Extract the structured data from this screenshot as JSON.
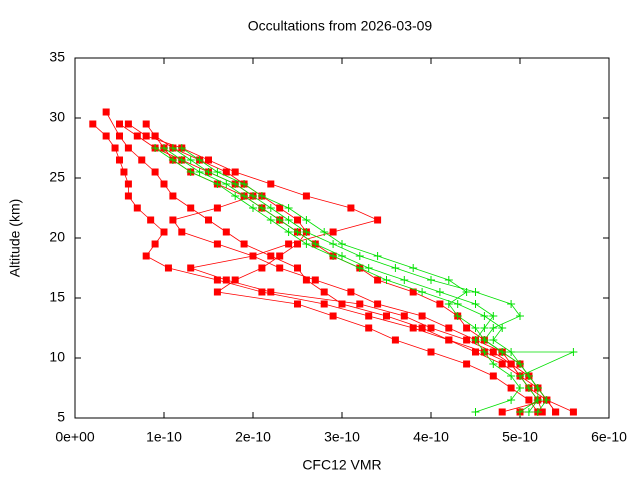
{
  "chart_data": {
    "type": "scatter",
    "title": "Occultations from 2026-03-09",
    "x_label": "CFC12 VMR",
    "y_label": "Altitude (km)",
    "xlim": [
      0,
      6e-10
    ],
    "ylim": [
      5,
      35
    ],
    "xticks": [
      {
        "value": 0,
        "label": "0e+00"
      },
      {
        "value": 1e-10,
        "label": "1e-10"
      },
      {
        "value": 2e-10,
        "label": "2e-10"
      },
      {
        "value": 3e-10,
        "label": "3e-10"
      },
      {
        "value": 4e-10,
        "label": "4e-10"
      },
      {
        "value": 5e-10,
        "label": "5e-10"
      },
      {
        "value": 6e-10,
        "label": "6e-10"
      }
    ],
    "yticks": [
      5,
      10,
      15,
      20,
      25,
      30,
      35
    ],
    "series": [
      {
        "color": "#ff0000",
        "marker": "square",
        "x": [
          2e-11,
          3.5e-11,
          4.5e-11,
          5e-11,
          5.5e-11,
          6e-11,
          6e-11,
          7e-11,
          8.5e-11,
          1e-10,
          9e-11,
          8e-11,
          1.05e-10,
          1.6e-10,
          2.1e-10,
          2.8e-10,
          3.3e-10,
          3.8e-10,
          4.2e-10,
          4.5e-10,
          4.8e-10,
          5e-10,
          5.1e-10,
          5.2e-10,
          5.25e-10
        ],
        "values": [
          29.5,
          28.5,
          27.5,
          26.5,
          25.5,
          24.5,
          23.5,
          22.5,
          21.5,
          20.5,
          19.5,
          18.5,
          17.5,
          16.5,
          15.5,
          14.5,
          13.5,
          12.5,
          11.5,
          10.5,
          9.5,
          8.5,
          7.5,
          6.5,
          5.5
        ]
      },
      {
        "color": "#ff0000",
        "marker": "square",
        "x": [
          3.5e-11,
          5e-11,
          6e-11,
          7.5e-11,
          9e-11,
          1e-10,
          1.1e-10,
          1.3e-10,
          1.5e-10,
          1.7e-10,
          1.9e-10,
          2.2e-10,
          2.5e-10,
          2.6e-10,
          2.8e-10,
          3e-10,
          3.5e-10,
          3.9e-10,
          4.2e-10,
          4.6e-10,
          4.9e-10,
          5.1e-10,
          5.2e-10,
          5.3e-10,
          4.8e-10
        ],
        "values": [
          30.5,
          28.5,
          27.5,
          26.5,
          25.5,
          24.5,
          23.5,
          22.5,
          21.5,
          20.5,
          19.5,
          18.5,
          17.5,
          16.5,
          15.5,
          14.5,
          13.5,
          12.5,
          11.5,
          10.5,
          9.5,
          8.5,
          7.5,
          6.5,
          5.5
        ]
      },
      {
        "color": "#ff0000",
        "marker": "square",
        "x": [
          8e-11,
          9e-11,
          1e-10,
          1.1e-10,
          1.3e-10,
          1.6e-10,
          1.9e-10,
          2.1e-10,
          2.3e-10,
          2.5e-10,
          2.7e-10,
          2.9e-10,
          3.2e-10,
          3.4e-10,
          3.8e-10,
          4.1e-10,
          4.3e-10,
          4.4e-10,
          4.6e-10,
          4.8e-10,
          5e-10,
          5.1e-10,
          5.2e-10,
          5.3e-10,
          5.4e-10
        ],
        "values": [
          29.5,
          28.5,
          27.5,
          26.5,
          25.5,
          24.5,
          23.5,
          22.5,
          21.5,
          20.5,
          19.5,
          18.5,
          17.5,
          16.5,
          15.5,
          14.5,
          13.5,
          12.5,
          11.5,
          10.5,
          9.5,
          8.5,
          7.5,
          6.5,
          5.5
        ]
      },
      {
        "color": "#ff0000",
        "marker": "square",
        "x": [
          6e-11,
          8e-11,
          1.2e-10,
          1.5e-10,
          1.8e-10,
          2.2e-10,
          2.6e-10,
          3.1e-10,
          3.4e-10,
          2.9e-10,
          2.4e-10,
          2e-10,
          1.3e-10,
          1.7e-10,
          2.2e-10,
          3.2e-10,
          3.7e-10,
          4e-10,
          4.4e-10,
          4.7e-10,
          4.9e-10,
          5e-10,
          5.1e-10,
          5.3e-10,
          5.6e-10
        ],
        "values": [
          29.5,
          28.5,
          27.5,
          26.5,
          25.5,
          24.5,
          23.5,
          22.5,
          21.5,
          20.5,
          19.5,
          18.5,
          17.5,
          16.5,
          15.5,
          14.5,
          13.5,
          12.5,
          11.5,
          10.5,
          9.5,
          8.5,
          7.5,
          6.5,
          5.5
        ]
      },
      {
        "color": "#ff0000",
        "marker": "square",
        "x": [
          9e-11,
          1.1e-10,
          1.4e-10,
          1.7e-10,
          1.9e-10,
          2.1e-10,
          2.3e-10,
          2.5e-10,
          2.6e-10,
          2.5e-10,
          2.3e-10,
          2.1e-10,
          1.8e-10,
          1.6e-10,
          2.5e-10,
          2.9e-10,
          3.3e-10,
          3.6e-10,
          4e-10,
          4.4e-10,
          4.7e-10,
          4.9e-10,
          5.1e-10,
          5.2e-10,
          5e-10
        ],
        "values": [
          28.5,
          27.5,
          26.5,
          25.5,
          24.5,
          23.5,
          22.5,
          21.5,
          20.5,
          19.5,
          18.5,
          17.5,
          16.5,
          15.5,
          14.5,
          13.5,
          12.5,
          11.5,
          10.5,
          9.5,
          8.5,
          7.5,
          6.5,
          5.5,
          5.5
        ]
      },
      {
        "color": "#ff0000",
        "marker": "square",
        "x": [
          5e-11,
          7e-11,
          9e-11,
          1.2e-10,
          1.5e-10,
          1.8e-10,
          2e-10,
          1.6e-10,
          1.1e-10,
          1.2e-10,
          1.6e-10,
          2e-10,
          2.3e-10,
          2.7e-10,
          3.1e-10,
          3.4e-10,
          3.9e-10,
          4.2e-10,
          4.5e-10,
          4.8e-10,
          4.9e-10,
          5e-10,
          5.2e-10,
          5.3e-10,
          5.4e-10
        ],
        "values": [
          29.5,
          28.5,
          27.5,
          26.5,
          25.5,
          24.5,
          23.5,
          22.5,
          21.5,
          20.5,
          19.5,
          18.5,
          17.5,
          16.5,
          15.5,
          14.5,
          13.5,
          12.5,
          11.5,
          10.5,
          9.5,
          8.5,
          7.5,
          6.5,
          5.5
        ]
      },
      {
        "color": "#00e000",
        "marker": "plus",
        "x": [
          1e-10,
          1.2e-10,
          1.4e-10,
          1.7e-10,
          1.9e-10,
          2.1e-10,
          2.3e-10,
          2.5e-10,
          2.7e-10,
          3e-10,
          3.3e-10,
          3.7e-10,
          4.1e-10,
          4.5e-10,
          4.7e-10,
          4.6e-10,
          4.5e-10,
          4.6e-10,
          4.7e-10,
          4.9e-10,
          5e-10,
          4.9e-10,
          4.5e-10
        ],
        "values": [
          27.5,
          26.5,
          25.5,
          24.5,
          23.5,
          22.5,
          21.5,
          20.5,
          19.5,
          18.5,
          17.5,
          16.5,
          15.5,
          14.5,
          13.5,
          12.5,
          11.5,
          10.5,
          9.5,
          8.5,
          7.5,
          6.5,
          5.5
        ]
      },
      {
        "color": "#00e000",
        "marker": "plus",
        "x": [
          1.1e-10,
          1.3e-10,
          1.5e-10,
          1.8e-10,
          2e-10,
          2.2e-10,
          2.4e-10,
          2.6e-10,
          2.9e-10,
          3.2e-10,
          3.6e-10,
          4e-10,
          4.5e-10,
          4.9e-10,
          5e-10,
          4.7e-10,
          4.6e-10,
          4.8e-10,
          5e-10,
          5.1e-10,
          5.2e-10,
          5.2e-10,
          5e-10
        ],
        "values": [
          27.5,
          26.5,
          25.5,
          24.5,
          23.5,
          22.5,
          21.5,
          20.5,
          19.5,
          18.5,
          17.5,
          16.5,
          15.5,
          14.5,
          13.5,
          12.5,
          11.5,
          10.5,
          9.5,
          8.5,
          7.5,
          6.5,
          5.5
        ]
      },
      {
        "color": "#00e000",
        "marker": "plus",
        "x": [
          1.2e-10,
          1.4e-10,
          1.6e-10,
          1.9e-10,
          2.1e-10,
          2.4e-10,
          2.6e-10,
          2.8e-10,
          3e-10,
          3.4e-10,
          3.8e-10,
          4.2e-10,
          4.4e-10,
          4.2e-10,
          4.3e-10,
          4.5e-10,
          4.6e-10,
          4.8e-10,
          5.6e-10,
          5e-10,
          5.1e-10,
          5.2e-10,
          5.1e-10
        ],
        "values": [
          27.5,
          26.5,
          25.5,
          24.5,
          23.5,
          22.5,
          21.5,
          20.5,
          19.5,
          18.5,
          17.5,
          16.5,
          15.5,
          14.5,
          13.5,
          12.5,
          11.5,
          10.5,
          10.5,
          8.5,
          7.5,
          6.5,
          5.5
        ]
      },
      {
        "color": "#00e000",
        "marker": "plus",
        "x": [
          9e-11,
          1.1e-10,
          1.3e-10,
          1.6e-10,
          1.8e-10,
          2e-10,
          2.2e-10,
          2.4e-10,
          2.6e-10,
          2.9e-10,
          3.2e-10,
          3.5e-10,
          3.9e-10,
          4.3e-10,
          4.6e-10,
          4.8e-10,
          4.7e-10,
          4.9e-10,
          5e-10,
          5.1e-10,
          5.2e-10,
          5.3e-10,
          5.2e-10
        ],
        "values": [
          27.5,
          26.5,
          25.5,
          24.5,
          23.5,
          22.5,
          21.5,
          20.5,
          19.5,
          18.5,
          17.5,
          16.5,
          15.5,
          14.5,
          13.5,
          12.5,
          11.5,
          10.5,
          9.5,
          8.5,
          7.5,
          6.5,
          5.5
        ]
      }
    ]
  }
}
